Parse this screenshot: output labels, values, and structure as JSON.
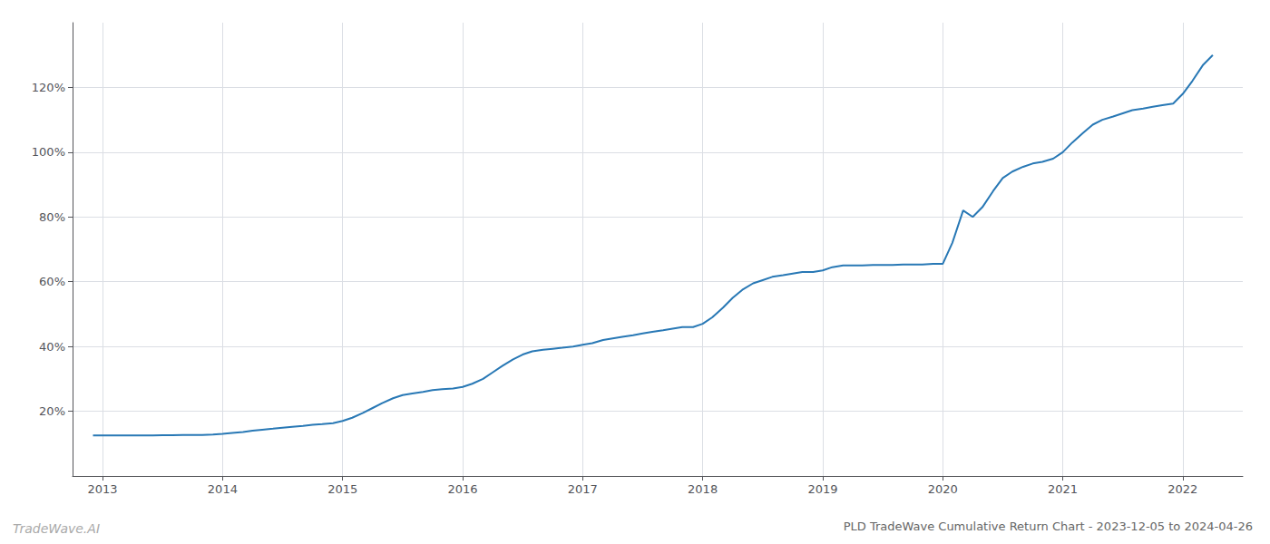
{
  "chart_data": {
    "type": "line",
    "title": "PLD TradeWave Cumulative Return Chart - 2023-12-05 to 2024-04-26",
    "annotations": [
      "TradeWave.AI"
    ],
    "color": "#2878b5",
    "grid": true,
    "x": [
      2012.92,
      2013.0,
      2013.08,
      2013.17,
      2013.25,
      2013.33,
      2013.42,
      2013.5,
      2013.58,
      2013.67,
      2013.75,
      2013.83,
      2013.92,
      2014.0,
      2014.08,
      2014.17,
      2014.25,
      2014.33,
      2014.42,
      2014.5,
      2014.58,
      2014.67,
      2014.75,
      2014.83,
      2014.92,
      2015.0,
      2015.08,
      2015.17,
      2015.25,
      2015.33,
      2015.42,
      2015.5,
      2015.58,
      2015.67,
      2015.75,
      2015.83,
      2015.92,
      2016.0,
      2016.08,
      2016.17,
      2016.25,
      2016.33,
      2016.42,
      2016.5,
      2016.58,
      2016.67,
      2016.75,
      2016.83,
      2016.92,
      2017.0,
      2017.08,
      2017.17,
      2017.25,
      2017.33,
      2017.42,
      2017.5,
      2017.58,
      2017.67,
      2017.75,
      2017.83,
      2017.92,
      2018.0,
      2018.08,
      2018.17,
      2018.25,
      2018.33,
      2018.42,
      2018.5,
      2018.58,
      2018.67,
      2018.75,
      2018.83,
      2018.92,
      2019.0,
      2019.08,
      2019.17,
      2019.25,
      2019.33,
      2019.42,
      2019.5,
      2019.58,
      2019.67,
      2019.75,
      2019.83,
      2019.92,
      2020.0,
      2020.08,
      2020.17,
      2020.25,
      2020.33,
      2020.42,
      2020.5,
      2020.58,
      2020.67,
      2020.75,
      2020.83,
      2020.92,
      2021.0,
      2021.08,
      2021.17,
      2021.25,
      2021.33,
      2021.42,
      2021.5,
      2021.58,
      2021.67,
      2021.75,
      2021.83,
      2021.92,
      2022.0,
      2022.08,
      2022.17,
      2022.25
    ],
    "values": [
      12.5,
      12.5,
      12.5,
      12.5,
      12.5,
      12.5,
      12.5,
      12.6,
      12.6,
      12.7,
      12.7,
      12.7,
      12.8,
      13.0,
      13.3,
      13.6,
      14.0,
      14.3,
      14.6,
      14.9,
      15.2,
      15.5,
      15.8,
      16.0,
      16.3,
      17.0,
      18.0,
      19.5,
      21.0,
      22.5,
      24.0,
      25.0,
      25.5,
      26.0,
      26.5,
      26.8,
      27.0,
      27.5,
      28.5,
      30.0,
      32.0,
      34.0,
      36.0,
      37.5,
      38.5,
      39.0,
      39.3,
      39.6,
      40.0,
      40.5,
      41.0,
      42.0,
      42.5,
      43.0,
      43.5,
      44.0,
      44.5,
      45.0,
      45.5,
      46.0,
      46.0,
      47.0,
      49.0,
      52.0,
      55.0,
      57.5,
      59.5,
      60.5,
      61.5,
      62.0,
      62.5,
      63.0,
      63.0,
      63.5,
      64.5,
      65.0,
      65.0,
      65.0,
      65.2,
      65.2,
      65.2,
      65.3,
      65.3,
      65.3,
      65.5,
      65.5,
      72.0,
      82.0,
      80.0,
      83.0,
      88.0,
      92.0,
      94.0,
      95.5,
      96.5,
      97.0,
      98.0,
      100.0,
      103.0,
      106.0,
      108.5,
      110.0,
      111.0,
      112.0,
      113.0,
      113.5,
      114.0,
      114.5,
      115.0,
      118.0,
      122.0,
      127.0,
      130.0
    ],
    "xlim": [
      2012.75,
      2022.5
    ],
    "xticks": [
      2013,
      2014,
      2015,
      2016,
      2017,
      2018,
      2019,
      2020,
      2021,
      2022
    ],
    "ylim": [
      0,
      140
    ],
    "yticks": [
      {
        "value": 20,
        "label": "20%"
      },
      {
        "value": 40,
        "label": "40%"
      },
      {
        "value": 60,
        "label": "60%"
      },
      {
        "value": 80,
        "label": "80%"
      },
      {
        "value": 100,
        "label": "100%"
      },
      {
        "value": 120,
        "label": "120%"
      }
    ]
  }
}
